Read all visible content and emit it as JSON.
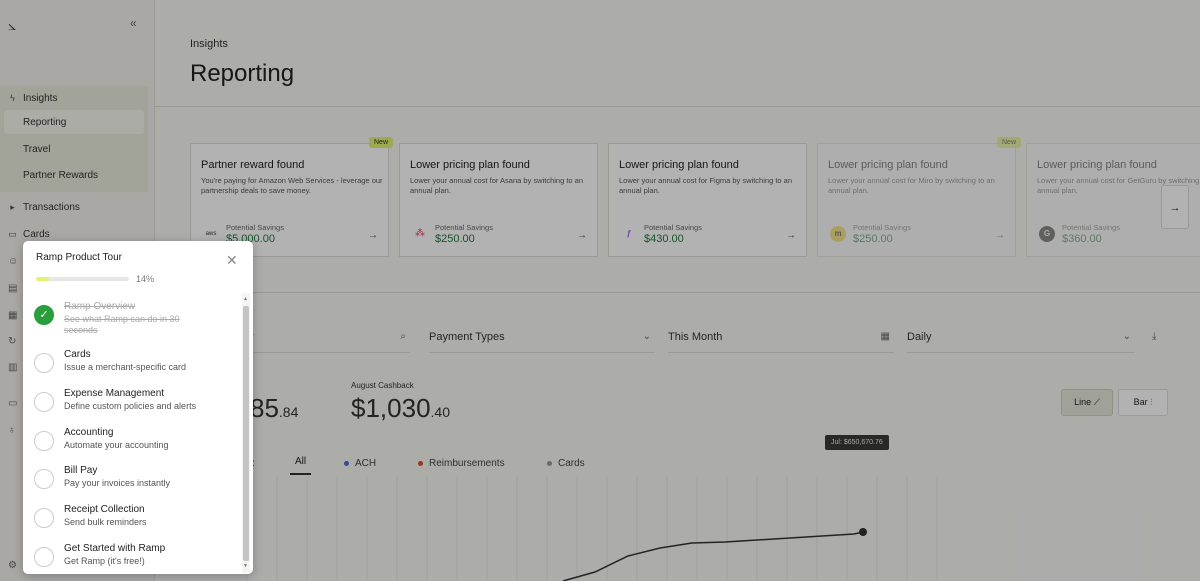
{
  "sidebar": {
    "collapse_icon": "double-chevron-left-icon",
    "items": [
      {
        "label": "Insights"
      },
      {
        "label": "Reporting"
      },
      {
        "label": "Travel"
      },
      {
        "label": "Partner Rewards"
      },
      {
        "label": "Transactions"
      },
      {
        "label": "Cards"
      }
    ]
  },
  "header": {
    "breadcrumb": "Insights",
    "title": "Reporting"
  },
  "cards": [
    {
      "title": "Partner reward found",
      "desc": "You're paying for Amazon Web Services - leverage our partnership deals to save money.",
      "savings_label": "Potential Savings",
      "savings": "$5,000.00",
      "logo": "aws",
      "badge": "New"
    },
    {
      "title": "Lower pricing plan found",
      "desc": "Lower your annual cost for Asana by switching to an annual plan.",
      "savings_label": "Potential Savings",
      "savings": "$250.00"
    },
    {
      "title": "Lower pricing plan found",
      "desc": "Lower your annual cost for Figma by switching to an annual plan.",
      "savings_label": "Potential Savings",
      "savings": "$430.00"
    },
    {
      "title": "Lower pricing plan found",
      "desc": "Lower your annual cost for Miro by switching to an annual plan.",
      "savings_label": "Potential Savings",
      "savings": "$250.00",
      "badge": "New"
    },
    {
      "title": "Lower pricing plan found",
      "desc": "Lower your annual cost for GetGuru by switching to an annual plan.",
      "savings_label": "Potential Savings",
      "savings": "$360.00"
    }
  ],
  "filters": {
    "search_suffix": "r",
    "payment_types": "Payment Types",
    "period": "This Month",
    "granularity": "Daily"
  },
  "kpis": {
    "spend_main": "85",
    "spend_cents": ".84",
    "cashback_label": "August Cashback",
    "cashback_main": "$1,030",
    "cashback_cents": ".40"
  },
  "chart_toggle": {
    "line": "Line",
    "bar": "Bar"
  },
  "chart": {
    "tooltip": "Jul: $650,670.76",
    "legend_prefix": "s:",
    "tab_all": "All",
    "legend": [
      {
        "name": "ACH",
        "color": "#5566dd"
      },
      {
        "name": "Reimbursements",
        "color": "#d94f1f"
      },
      {
        "name": "Cards",
        "color": "#9a9a9a"
      }
    ]
  },
  "tour": {
    "title": "Ramp Product Tour",
    "progress_label": "14%",
    "progress": 0.14,
    "steps": [
      {
        "name": "Ramp Overview",
        "desc": "See what Ramp can do in 30 seconds",
        "done": true
      },
      {
        "name": "Cards",
        "desc": "Issue a merchant-specific card",
        "done": false
      },
      {
        "name": "Expense Management",
        "desc": "Define custom policies and alerts",
        "done": false
      },
      {
        "name": "Accounting",
        "desc": "Automate your accounting",
        "done": false
      },
      {
        "name": "Bill Pay",
        "desc": "Pay your invoices instantly",
        "done": false
      },
      {
        "name": "Receipt Collection",
        "desc": "Send bulk reminders",
        "done": false
      },
      {
        "name": "Get Started with Ramp",
        "desc": "Get Ramp (it's free!)",
        "done": false
      }
    ]
  }
}
